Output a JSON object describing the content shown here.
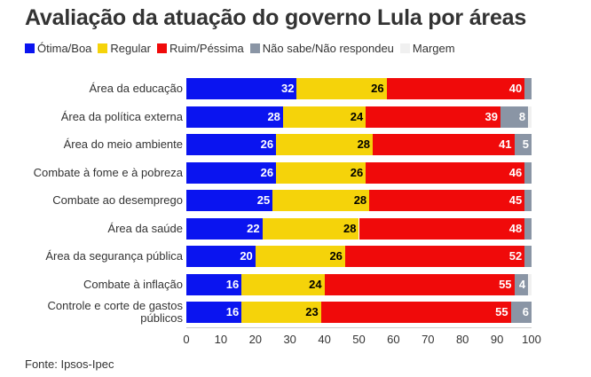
{
  "title": "Avaliação da atuação do governo Lula por áreas",
  "legend": [
    {
      "label": "Ótima/Boa",
      "color": "#0a14f0"
    },
    {
      "label": "Regular",
      "color": "#f5d30a"
    },
    {
      "label": "Ruim/Péssima",
      "color": "#f00a0a"
    },
    {
      "label": "Não sabe/Não respondeu",
      "color": "#8a95a5"
    },
    {
      "label": "Margem",
      "color": "#f0f0f0"
    }
  ],
  "source": "Fonte: Ipsos-Ipec",
  "chart_data": {
    "type": "bar",
    "orientation": "horizontal",
    "stacked": true,
    "categories": [
      "Área da educação",
      "Área da política externa",
      "Área do meio ambiente",
      "Combate à fome e à pobreza",
      "Combate ao desemprego",
      "Área da saúde",
      "Área da segurança pública",
      "Combate à inflação",
      "Controle e corte de gastos públicos"
    ],
    "category_lines": [
      [
        "Área da educação"
      ],
      [
        "Área da política externa"
      ],
      [
        "Área do meio ambiente"
      ],
      [
        "Combate à fome e à pobreza"
      ],
      [
        "Combate ao desemprego"
      ],
      [
        "Área da saúde"
      ],
      [
        "Área da segurança pública"
      ],
      [
        "Combate à inflação"
      ],
      [
        "Controle e corte de gastos",
        "públicos"
      ]
    ],
    "series": [
      {
        "name": "Ótima/Boa",
        "color": "#0a14f0",
        "label_color": "#ffffff",
        "values": [
          32,
          28,
          26,
          26,
          25,
          22,
          20,
          16,
          16
        ]
      },
      {
        "name": "Regular",
        "color": "#f5d30a",
        "label_color": "#000000",
        "values": [
          26,
          24,
          28,
          26,
          28,
          28,
          26,
          24,
          23
        ]
      },
      {
        "name": "Ruim/Péssima",
        "color": "#f00a0a",
        "label_color": "#ffffff",
        "values": [
          40,
          39,
          41,
          46,
          45,
          48,
          52,
          55,
          55
        ]
      },
      {
        "name": "Não sabe/Não respondeu",
        "color": "#8a95a5",
        "label_color": "#ffffff",
        "values": [
          2,
          8,
          5,
          2,
          2,
          2,
          2,
          4,
          6
        ]
      },
      {
        "name": "Margem",
        "color": "#f0f0f0",
        "label_color": "#333333",
        "values": [
          0,
          1,
          0,
          0,
          0,
          0,
          0,
          1,
          0
        ]
      }
    ],
    "label_min_value": 4,
    "xlim": [
      0,
      100
    ],
    "xticks": [
      0,
      10,
      20,
      30,
      40,
      50,
      60,
      70,
      80,
      90,
      100
    ],
    "grid": false,
    "legend_position": "top-left"
  }
}
